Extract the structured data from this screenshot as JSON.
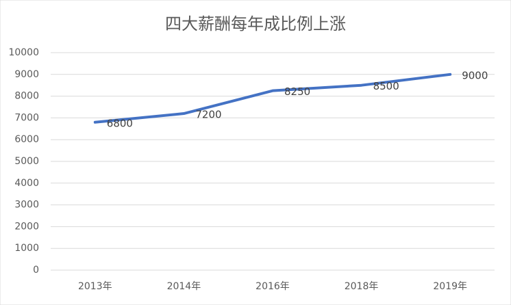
{
  "chart_data": {
    "type": "line",
    "title": "四大薪酬每年成比例上涨",
    "categories": [
      "2013年",
      "2014年",
      "2016年",
      "2018年",
      "2019年"
    ],
    "series": [
      {
        "values": [
          6800,
          7200,
          8250,
          8500,
          9000
        ],
        "color": "#4472c4"
      }
    ],
    "ylim": [
      0,
      10000
    ],
    "yticks": [
      0,
      1000,
      2000,
      3000,
      4000,
      5000,
      6000,
      7000,
      8000,
      9000,
      10000
    ],
    "grid": true,
    "data_labels": true
  }
}
